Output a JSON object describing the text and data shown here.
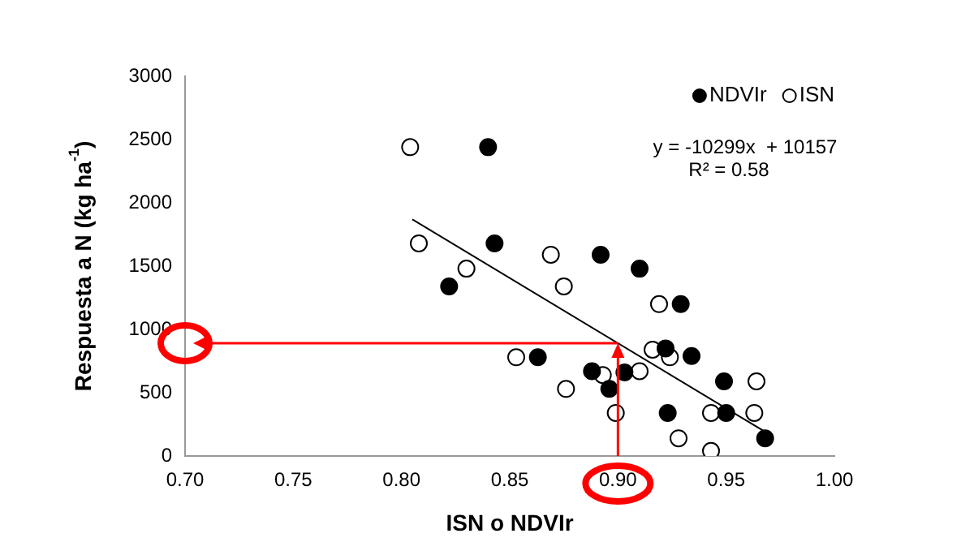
{
  "chart_data": {
    "type": "scatter",
    "xlabel": "ISN o NDVIr",
    "ylabel": "Respuesta a N (kg ha$^{-1}$)",
    "xlim": [
      0.7,
      1.0
    ],
    "xticks": [
      {
        "value": 0.7,
        "label": "0.70"
      },
      0.75,
      {
        "value": 0.8,
        "label": "0.80"
      },
      0.85,
      {
        "value": 0.9,
        "label": "0.90"
      },
      0.95,
      {
        "value": 1.0,
        "label": "1.00"
      }
    ],
    "ylim": [
      0,
      3000
    ],
    "yticks": [
      0,
      500,
      1000,
      1500,
      2000,
      2500,
      3000
    ],
    "grid": false,
    "legend": "top right",
    "annotations": [
      "y = -10299x  + 10157",
      "R² = 0.58"
    ],
    "series": [
      {
        "name": "NDVIr",
        "color": "#000000",
        "marker": "circle",
        "x": [
          0.84,
          0.843,
          0.822,
          0.892,
          0.91,
          0.929,
          0.922,
          0.934,
          0.863,
          0.888,
          0.903,
          0.896,
          0.949,
          0.923,
          0.95,
          0.968
        ],
        "values": [
          2440,
          1680,
          1340,
          1590,
          1480,
          1200,
          850,
          790,
          780,
          670,
          660,
          530,
          590,
          340,
          340,
          140
        ]
      },
      {
        "name": "ISN",
        "color": "#ffffff",
        "marker": "circle",
        "x": [
          0.804,
          0.808,
          0.83,
          0.869,
          0.875,
          0.853,
          0.893,
          0.876,
          0.899,
          0.919,
          0.916,
          0.924,
          0.91,
          0.964,
          0.943,
          0.963,
          0.928,
          0.943
        ],
        "values": [
          2440,
          1680,
          1480,
          1590,
          1340,
          780,
          640,
          530,
          340,
          1200,
          840,
          780,
          670,
          590,
          340,
          340,
          140,
          40
        ]
      },
      {
        "type": "line",
        "color": "#000000",
        "marker": "none",
        "x": [
          0.805,
          0.97
        ],
        "values": [
          1870,
          170
        ]
      }
    ]
  }
}
